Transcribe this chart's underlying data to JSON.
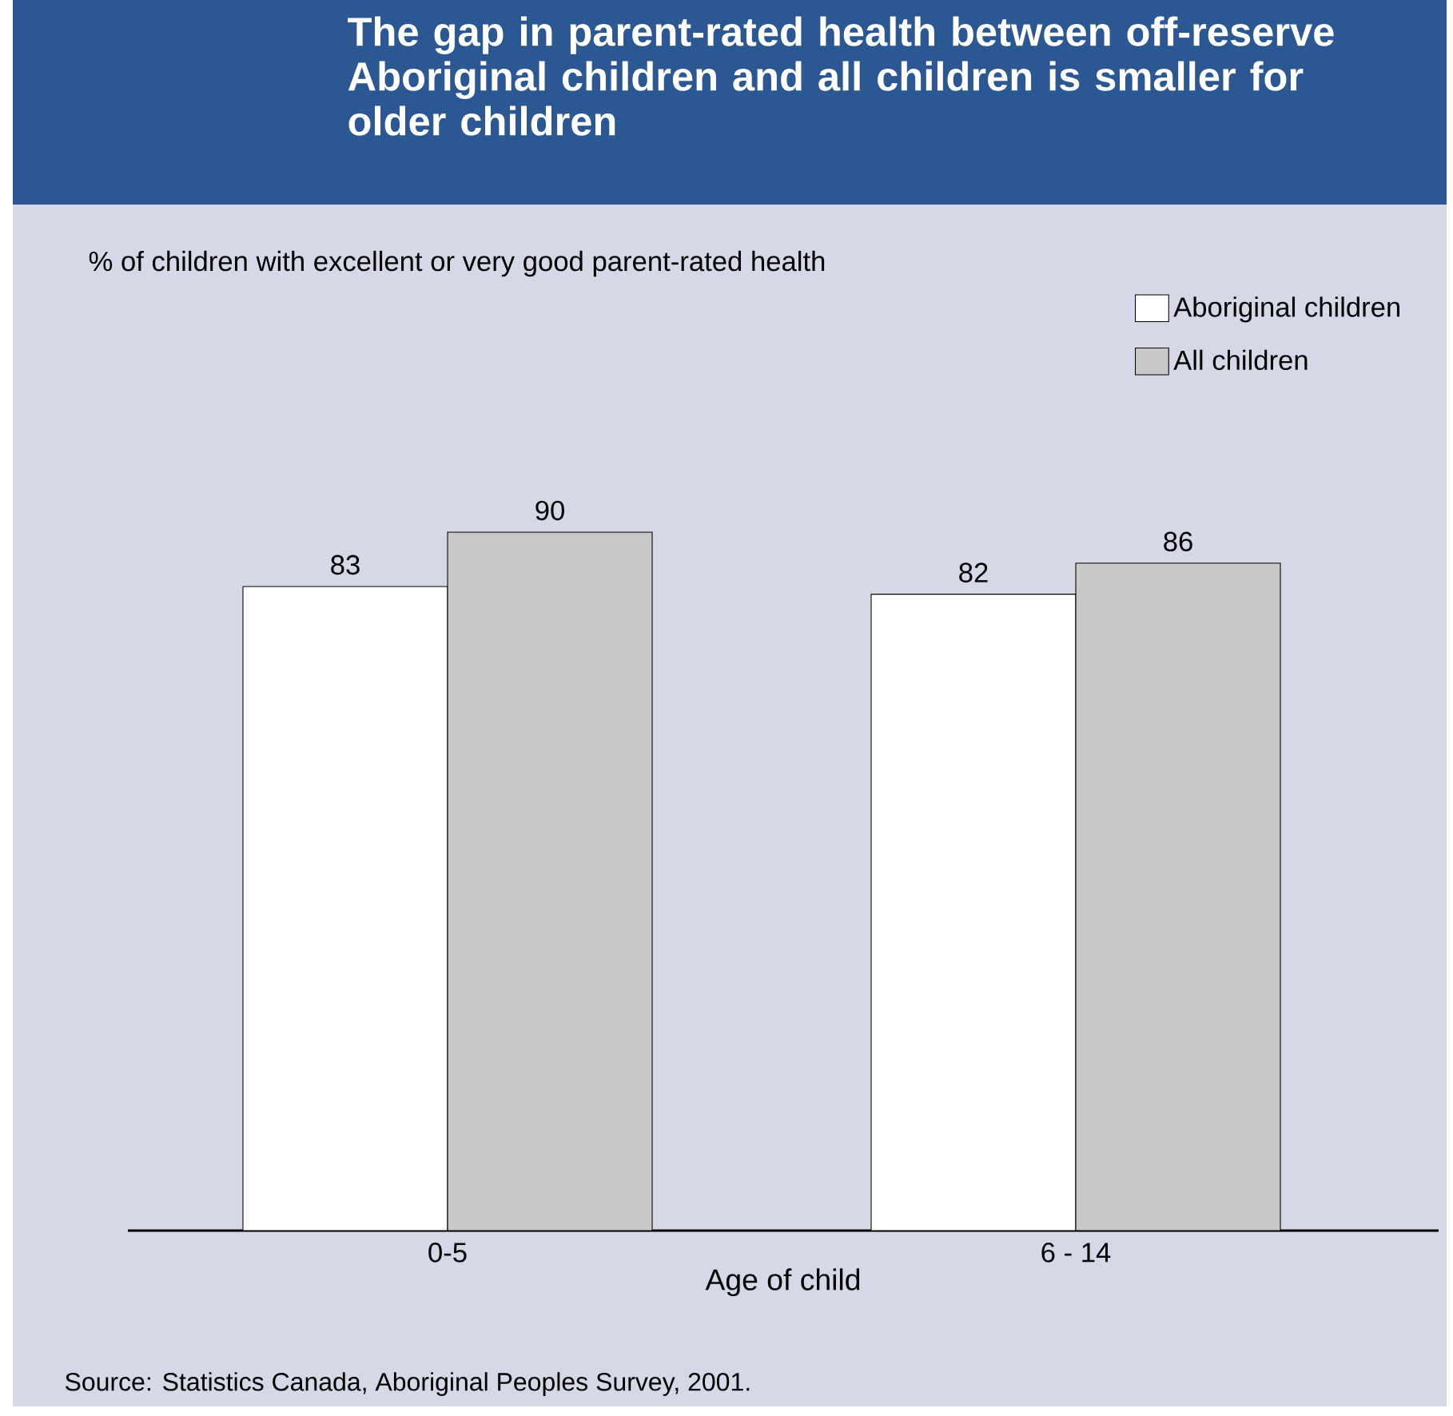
{
  "chart_data": {
    "type": "bar",
    "title": "The gap in parent-rated health between off-reserve Aboriginal children and all children is smaller for older children",
    "subtitle": "% of children with excellent or very good parent-rated health",
    "xlabel": "Age of child",
    "categories": [
      "0-5",
      "6 - 14"
    ],
    "series": [
      {
        "name": "Aboriginal children",
        "color": "#ffffff",
        "values": [
          83,
          82
        ]
      },
      {
        "name": "All children",
        "color": "#c8c8c8",
        "values": [
          90,
          86
        ]
      }
    ],
    "data_labels": true,
    "legend": "top right",
    "annotations": [
      "Source: Statistics Canada, Aboriginal Peoples Survey, 2001."
    ]
  }
}
